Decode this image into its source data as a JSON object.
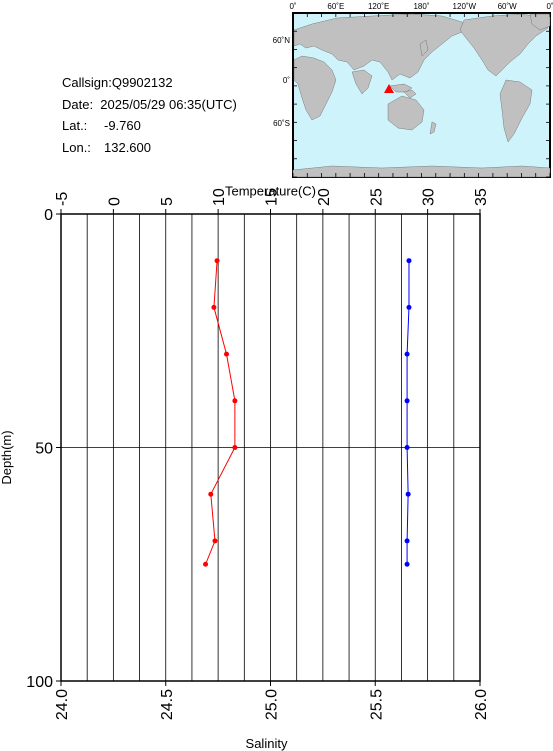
{
  "station": {
    "callsign": "Callsign:Q9902132",
    "date": "Date:  2025/05/29 06:35(UTC)",
    "lat_label": "Lat.:",
    "lat_value": "-9.760",
    "lon_label": "Lon.:",
    "lon_value": "132.600"
  },
  "map": {
    "top_ticks": [
      "0˚",
      "60˚E",
      "120˚E",
      "180˚",
      "120˚W",
      "60˚W",
      "0˚"
    ],
    "left_ticks": [
      "60˚N",
      "0˚",
      "60˚S"
    ],
    "ocean_color": "#cff3fb",
    "land_color": "#c0c0c0",
    "marker_color": "#ff0000"
  },
  "chart_data": {
    "type": "line",
    "top_axis_label": "Temperature(C)",
    "bottom_axis_label": "Salinity",
    "left_axis_label": "Depth(m)",
    "temperature_ticks": [
      "-5",
      "0",
      "5",
      "10",
      "15",
      "20",
      "25",
      "30",
      "35"
    ],
    "salinity_ticks": [
      "24.0",
      "24.5",
      "25.0",
      "25.5",
      "26.0"
    ],
    "depth_ticks": [
      "0",
      "50",
      "100"
    ],
    "temperature_range": [
      -5,
      35
    ],
    "salinity_range": [
      24.0,
      26.0
    ],
    "depth_range": [
      0,
      100
    ],
    "grid": true,
    "series": [
      {
        "name": "Temperature",
        "axis": "temperature",
        "color": "#ff0000",
        "depth": [
          10,
          20,
          30,
          40,
          50,
          60,
          70,
          75
        ],
        "values": [
          9.9,
          9.6,
          10.8,
          11.6,
          11.6,
          9.3,
          9.7,
          8.8
        ]
      },
      {
        "name": "Salinity",
        "axis": "salinity",
        "color": "#0000ff",
        "depth": [
          10,
          20,
          30,
          40,
          50,
          60,
          70,
          75
        ],
        "values": [
          25.661,
          25.661,
          25.652,
          25.652,
          25.652,
          25.657,
          25.652,
          25.652
        ]
      }
    ]
  }
}
